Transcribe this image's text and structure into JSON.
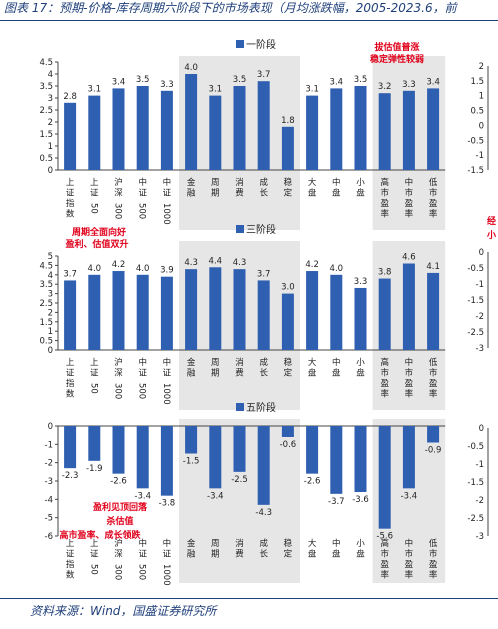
{
  "caption": "图表 17：预期-价格-库存周期六阶段下的市场表现（月均涨跌幅，2005-2023.6，",
  "caption_tail": "前",
  "source": "资料来源：Wind，国盛证券研究所",
  "colors": {
    "bar": "#2e5fb0",
    "band": "#e6e6e6",
    "annotation": "#e0001b",
    "axis": "#444444",
    "title": "#1f3f7a"
  },
  "chart_data": [
    {
      "type": "bar",
      "title": "一阶段",
      "categories": [
        "上证指数",
        "上证50",
        "沪深300",
        "中证500",
        "中证1000",
        "金融",
        "周期",
        "消费",
        "成长",
        "稳定",
        "大盘",
        "中盘",
        "小盘",
        "高市盈率",
        "中市盈率",
        "低市盈率"
      ],
      "values": [
        2.8,
        3.1,
        3.4,
        3.5,
        3.3,
        4.0,
        3.1,
        3.5,
        3.7,
        1.8,
        3.1,
        3.4,
        3.5,
        3.2,
        3.3,
        3.4
      ],
      "ylim": [
        0,
        4.5
      ],
      "yticks": [
        "4.5",
        "4",
        "3.5",
        "3",
        "2.5",
        "2",
        "1.5",
        "1",
        "0.5",
        "0"
      ],
      "annotations": [
        "拔估值普涨",
        "稳定弹性较弱"
      ],
      "right_ticks": [
        "2",
        "1.5",
        "1",
        "0.5",
        "0",
        "-0.5",
        "-1",
        "-1.5"
      ]
    },
    {
      "type": "bar",
      "title": "三阶段",
      "categories": [
        "上证指数",
        "上证50",
        "沪深300",
        "中证500",
        "中证1000",
        "金融",
        "周期",
        "消费",
        "成长",
        "稳定",
        "大盘",
        "中盘",
        "小盘",
        "高市盈率",
        "中市盈率",
        "低市盈率"
      ],
      "values": [
        3.7,
        4.0,
        4.2,
        4.0,
        3.9,
        4.3,
        4.4,
        4.3,
        3.7,
        3.0,
        4.2,
        4.0,
        3.3,
        3.8,
        4.6,
        4.1
      ],
      "ylim": [
        0,
        5
      ],
      "yticks": [
        "5",
        "4.5",
        "4",
        "3.5",
        "3",
        "2.5",
        "2",
        "1.5",
        "1",
        "0.5",
        "0"
      ],
      "annotations": [
        "周期全面向好",
        "盈利、估值双升"
      ],
      "right_annotations": [
        "经",
        "小"
      ],
      "right_ticks": [
        "0",
        "-0.5",
        "-1",
        "-1.5",
        "-2",
        "-2.5",
        "-3"
      ]
    },
    {
      "type": "bar",
      "title": "五阶段",
      "categories": [
        "上证指数",
        "上证50",
        "沪深300",
        "中证500",
        "中证1000",
        "金融",
        "周期",
        "消费",
        "成长",
        "稳定",
        "大盘",
        "中盘",
        "小盘",
        "高市盈率",
        "中市盈率",
        "低市盈率"
      ],
      "values": [
        -2.3,
        -1.9,
        -2.6,
        -3.4,
        -3.8,
        -1.5,
        -3.4,
        -2.5,
        -4.3,
        -0.6,
        -2.6,
        -3.7,
        -3.6,
        -5.6,
        -3.4,
        -0.9
      ],
      "ylim": [
        -6,
        0
      ],
      "yticks": [
        "0",
        "-1",
        "-2",
        "-3",
        "-4",
        "-5",
        "-6"
      ],
      "annotations": [
        "盈利见顶回落",
        "杀估值",
        "高市盈率、成长领跌"
      ],
      "right_ticks": [
        "0",
        "-0.5",
        "-1",
        "-1.5",
        "-2",
        "-2.5",
        "-3"
      ]
    }
  ]
}
